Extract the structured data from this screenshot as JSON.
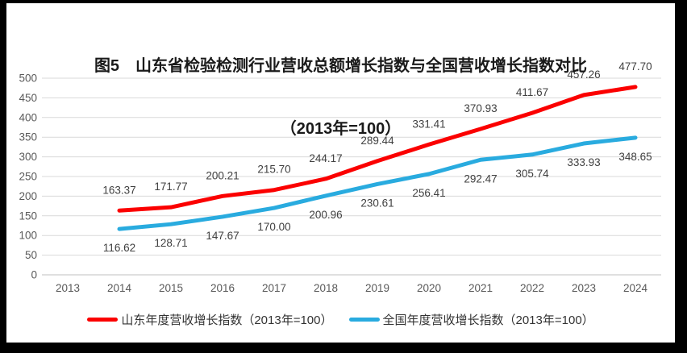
{
  "title": {
    "line1": "图5　山东省检验检测行业营收总额增长指数与全国营收增长指数对比",
    "line2": "（2013年=100）"
  },
  "chart_data": {
    "type": "line",
    "categories": [
      "2013",
      "2014",
      "2015",
      "2016",
      "2017",
      "2018",
      "2019",
      "2020",
      "2021",
      "2022",
      "2023",
      "2024"
    ],
    "series": [
      {
        "name": "山东年度营收增长指数（2013年=100）",
        "color": "#fb0000",
        "start_index": 1,
        "values": [
          163.37,
          171.77,
          200.21,
          215.7,
          244.17,
          289.44,
          331.41,
          370.93,
          411.67,
          457.26,
          477.7
        ],
        "label_side": "above"
      },
      {
        "name": "全国年度营收增长指数（2013年=100）",
        "color": "#29abdf",
        "start_index": 1,
        "values": [
          116.62,
          128.71,
          147.67,
          170.0,
          200.96,
          230.61,
          256.41,
          292.47,
          305.74,
          333.93,
          348.65
        ],
        "label_side": "below"
      }
    ],
    "ylim": [
      0,
      500
    ],
    "ytick_step": 50,
    "yticks": [
      0,
      50,
      100,
      150,
      200,
      250,
      300,
      350,
      400,
      450,
      500
    ],
    "grid": true,
    "data_labels": true,
    "label_decimals": 2,
    "legend_position": "bottom"
  },
  "colors": {
    "frame": "#000000",
    "panel": "#ffffff",
    "gridline": "#d9d9d9",
    "axis_line": "#bfbfbf",
    "axis_text": "#595959",
    "data_label_text": "#404040"
  }
}
